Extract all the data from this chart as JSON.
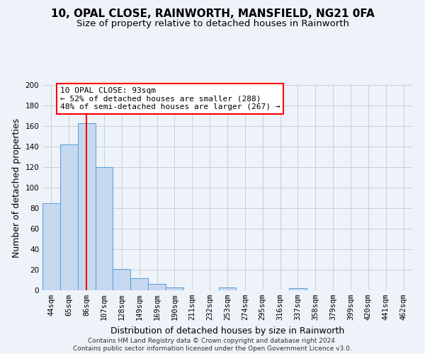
{
  "title": "10, OPAL CLOSE, RAINWORTH, MANSFIELD, NG21 0FA",
  "subtitle": "Size of property relative to detached houses in Rainworth",
  "xlabel": "Distribution of detached houses by size in Rainworth",
  "ylabel": "Number of detached properties",
  "bar_labels": [
    "44sqm",
    "65sqm",
    "86sqm",
    "107sqm",
    "128sqm",
    "149sqm",
    "169sqm",
    "190sqm",
    "211sqm",
    "232sqm",
    "253sqm",
    "274sqm",
    "295sqm",
    "316sqm",
    "337sqm",
    "358sqm",
    "379sqm",
    "399sqm",
    "420sqm",
    "441sqm",
    "462sqm"
  ],
  "bar_values": [
    85,
    142,
    163,
    120,
    21,
    12,
    6,
    3,
    0,
    0,
    3,
    0,
    0,
    0,
    2,
    0,
    0,
    0,
    0,
    0,
    0
  ],
  "bar_color": "#c5d8f0",
  "bar_edge_color": "#5b9bd5",
  "vline_x": 2.0,
  "vline_color": "red",
  "annotation_title": "10 OPAL CLOSE: 93sqm",
  "annotation_line2": "← 52% of detached houses are smaller (288)",
  "annotation_line3": "48% of semi-detached houses are larger (267) →",
  "annotation_box_color": "#ffffff",
  "annotation_box_edge": "red",
  "ylim": [
    0,
    200
  ],
  "yticks": [
    0,
    20,
    40,
    60,
    80,
    100,
    120,
    140,
    160,
    180,
    200
  ],
  "footer_line1": "Contains HM Land Registry data © Crown copyright and database right 2024.",
  "footer_line2": "Contains public sector information licensed under the Open Government Licence v3.0.",
  "bg_color": "#eef2f9",
  "grid_color": "#c8cfdc",
  "title_fontsize": 11,
  "subtitle_fontsize": 9.5,
  "axis_label_fontsize": 9,
  "tick_fontsize": 7.5,
  "footer_fontsize": 6.5,
  "annotation_fontsize": 8
}
